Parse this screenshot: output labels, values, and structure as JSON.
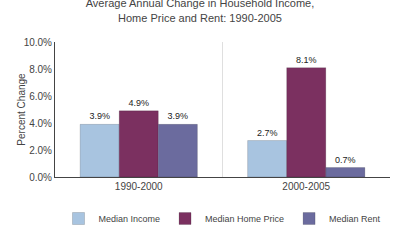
{
  "chart_data": {
    "type": "bar",
    "title": "Average Annual Change in Household Income,\nHome Price and Rent: 1990-2005",
    "categories": [
      "1990-2000",
      "2000-2005"
    ],
    "series": [
      {
        "name": "Median Income",
        "color": "#a8c4e0",
        "values": [
          3.9,
          2.7
        ],
        "value_labels": [
          "3.9%",
          "2.7%"
        ]
      },
      {
        "name": "Median Home Price",
        "color": "#7b3060",
        "values": [
          4.9,
          8.1
        ],
        "value_labels": [
          "4.9%",
          "8.1%"
        ]
      },
      {
        "name": "Median Rent",
        "color": "#6b6b9e",
        "values": [
          3.9,
          0.7
        ],
        "value_labels": [
          "3.9%",
          "0.7%"
        ]
      }
    ],
    "ylabel": "Percent Change",
    "ylim": [
      0,
      10
    ],
    "yticks": [
      {
        "value": 0.0,
        "label": "0.0%"
      },
      {
        "value": 2.0,
        "label": "2.0%"
      },
      {
        "value": 4.0,
        "label": "4.0%"
      },
      {
        "value": 6.0,
        "label": "6.0%"
      },
      {
        "value": 8.0,
        "label": "8.0%"
      },
      {
        "value": 10.0,
        "label": "10.0%"
      }
    ],
    "grid": false,
    "legend": "bottom",
    "data_labels": true
  }
}
